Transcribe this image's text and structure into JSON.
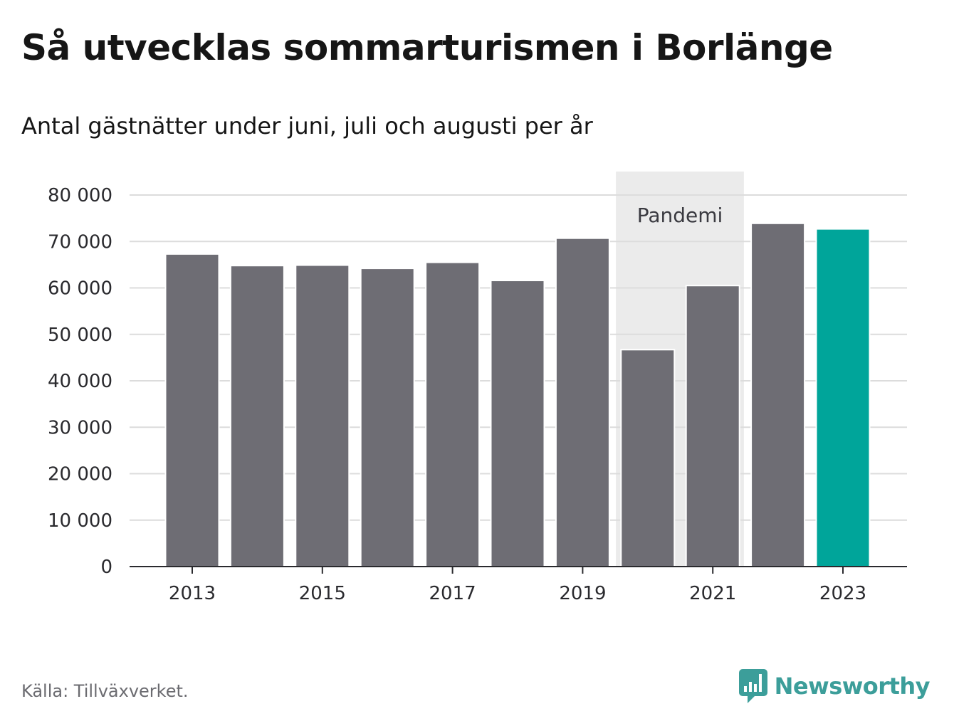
{
  "title": "Så utvecklas sommarturismen i Borlänge",
  "subtitle": "Antal gästnätter under juni, juli och augusti per år",
  "source": "Källa: Tillväxverket.",
  "brand": {
    "name": "Newsworthy",
    "icon": "newsworthy-logo-icon",
    "color": "#3c9e9a"
  },
  "chart_data": {
    "type": "bar",
    "categories": [
      "2013",
      "2014",
      "2015",
      "2016",
      "2017",
      "2018",
      "2019",
      "2020",
      "2021",
      "2022",
      "2023"
    ],
    "values": [
      67300,
      64800,
      64900,
      64200,
      65500,
      61600,
      70700,
      46700,
      60500,
      73900,
      72700
    ],
    "x_tick_labels": [
      "2013",
      "2015",
      "2017",
      "2019",
      "2021",
      "2023"
    ],
    "y_ticks": [
      0,
      10000,
      20000,
      30000,
      40000,
      50000,
      60000,
      70000,
      80000
    ],
    "y_tick_labels": [
      "0",
      "10 000",
      "20 000",
      "30 000",
      "40 000",
      "50 000",
      "60 000",
      "70 000",
      "80 000"
    ],
    "ylim": [
      0,
      80000
    ],
    "grid": true,
    "colors": {
      "bar": "#6e6d74",
      "highlight": "#00a59a",
      "band": "#ebebeb"
    },
    "highlight_category": "2023",
    "annotation": {
      "label": "Pandemi",
      "from": "2020",
      "to": "2021"
    }
  }
}
